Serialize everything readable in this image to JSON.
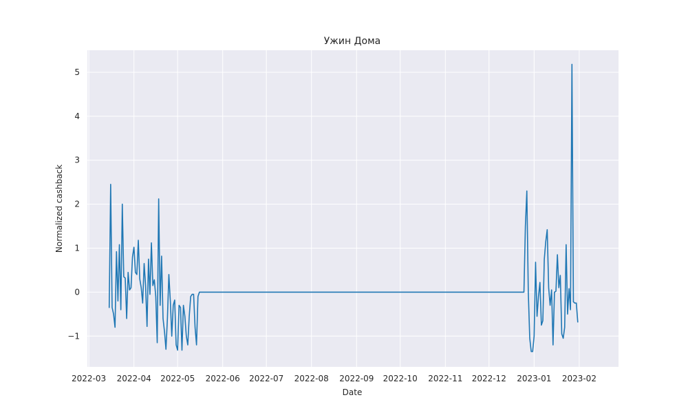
{
  "chart_data": {
    "type": "line",
    "title": "Ужин Дома",
    "xlabel": "Date",
    "ylabel": "Normalized cashback",
    "x_ticks": [
      "2022-03",
      "2022-04",
      "2022-05",
      "2022-06",
      "2022-07",
      "2022-08",
      "2022-09",
      "2022-10",
      "2022-11",
      "2022-12",
      "2023-01",
      "2023-02"
    ],
    "y_ticks": [
      "−1",
      "0",
      "1",
      "2",
      "3",
      "4",
      "5"
    ],
    "y_tick_values": [
      -1,
      0,
      1,
      2,
      3,
      4,
      5
    ],
    "xlim": [
      "2022-02-28",
      "2023-02-28"
    ],
    "ylim": [
      -1.7,
      5.5
    ],
    "grid": true,
    "background": "#eaeaf2",
    "series_color": "#1f77b4",
    "series": [
      {
        "x": [
          "2022-03-15",
          "2022-03-16",
          "2022-03-17",
          "2022-03-18",
          "2022-03-19",
          "2022-03-20",
          "2022-03-21",
          "2022-03-22",
          "2022-03-23",
          "2022-03-24",
          "2022-03-25",
          "2022-03-26",
          "2022-03-27",
          "2022-03-28",
          "2022-03-29",
          "2022-03-30",
          "2022-03-31",
          "2022-04-01",
          "2022-04-02",
          "2022-04-03",
          "2022-04-04",
          "2022-04-05",
          "2022-04-06",
          "2022-04-07",
          "2022-04-08",
          "2022-04-09",
          "2022-04-10",
          "2022-04-11",
          "2022-04-12",
          "2022-04-13",
          "2022-04-14",
          "2022-04-15",
          "2022-04-16",
          "2022-04-17",
          "2022-04-18",
          "2022-04-19",
          "2022-04-20",
          "2022-04-21",
          "2022-04-22",
          "2022-04-23",
          "2022-04-24",
          "2022-04-25",
          "2022-04-26",
          "2022-04-27",
          "2022-04-28",
          "2022-04-29",
          "2022-04-30",
          "2022-05-01",
          "2022-05-02",
          "2022-05-03",
          "2022-05-04",
          "2022-05-05",
          "2022-05-06",
          "2022-05-07",
          "2022-05-08",
          "2022-05-09",
          "2022-05-10",
          "2022-05-11",
          "2022-05-12",
          "2022-05-13",
          "2022-05-14",
          "2022-05-15",
          "2022-05-16",
          "2022-12-25",
          "2022-12-26",
          "2022-12-27",
          "2022-12-28",
          "2022-12-29",
          "2022-12-30",
          "2022-12-31",
          "2023-01-01",
          "2023-01-02",
          "2023-01-03",
          "2023-01-04",
          "2023-01-05",
          "2023-01-06",
          "2023-01-07",
          "2023-01-08",
          "2023-01-09",
          "2023-01-10",
          "2023-01-11",
          "2023-01-12",
          "2023-01-13",
          "2023-01-14",
          "2023-01-15",
          "2023-01-16",
          "2023-01-17",
          "2023-01-18",
          "2023-01-19",
          "2023-01-20",
          "2023-01-21",
          "2023-01-22",
          "2023-01-23",
          "2023-01-24",
          "2023-01-25",
          "2023-01-26",
          "2023-01-27",
          "2023-01-28",
          "2023-01-29",
          "2023-01-30",
          "2023-01-31"
        ],
        "y": [
          -0.35,
          2.45,
          -0.35,
          -0.5,
          -0.8,
          0.92,
          -0.2,
          1.08,
          -0.4,
          2.0,
          0.35,
          0.32,
          -0.6,
          0.45,
          0.05,
          0.1,
          0.8,
          1.02,
          0.45,
          0.4,
          1.18,
          0.3,
          0.1,
          -0.25,
          0.65,
          0.15,
          -0.78,
          0.75,
          -0.05,
          1.12,
          0.15,
          0.28,
          -0.1,
          -1.15,
          2.12,
          -0.3,
          0.82,
          -0.6,
          -0.9,
          -1.3,
          -0.6,
          0.4,
          -0.2,
          -1.0,
          -0.3,
          -0.18,
          -1.2,
          -1.32,
          -0.3,
          -0.35,
          -1.32,
          -0.3,
          -0.55,
          -1.0,
          -1.2,
          -0.55,
          -0.1,
          -0.05,
          -0.05,
          -0.8,
          -1.2,
          -0.1,
          0.0,
          0.0,
          1.5,
          2.3,
          0.0,
          -1.05,
          -1.35,
          -1.35,
          -1.0,
          0.68,
          -0.55,
          -0.1,
          0.22,
          -0.75,
          -0.65,
          0.75,
          1.15,
          1.42,
          0.1,
          -0.3,
          0.05,
          -1.2,
          0.0,
          0.02,
          0.85,
          0.1,
          0.38,
          -0.95,
          -1.05,
          -0.8,
          1.08,
          -0.5,
          0.08,
          -0.4,
          5.18,
          -0.22,
          -0.25,
          -0.25,
          -0.68
        ]
      }
    ]
  }
}
